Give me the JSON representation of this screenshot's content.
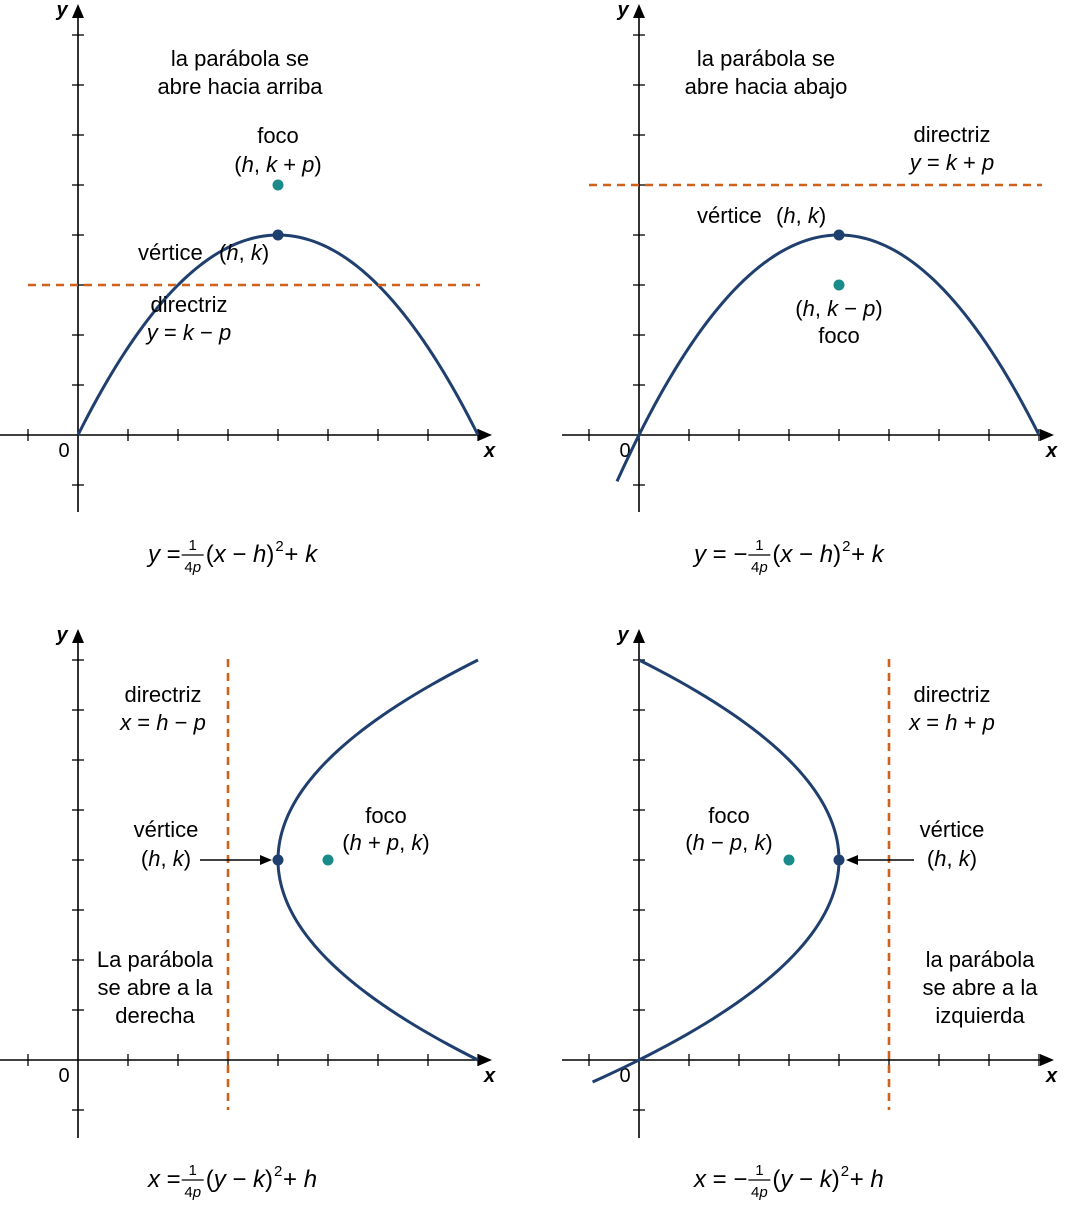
{
  "colors": {
    "curve": "#1f3f6e",
    "focus": "#1a8a8a",
    "directrix": "#d0611d",
    "text": "#000000"
  },
  "panels": {
    "up": {
      "axis_x": "x",
      "axis_y": "y",
      "origin": "0",
      "opening": [
        "la parábola se",
        "abre hacia arriba"
      ],
      "focus_label": "foco",
      "focus_coords": [
        "(",
        "h",
        ", ",
        "k",
        " + ",
        "p",
        ")"
      ],
      "vertex_label": "vértice",
      "vertex_coords": [
        "(",
        "h",
        ", ",
        "k",
        ")"
      ],
      "directrix_label": "directriz",
      "directrix_eq": [
        "y",
        " = ",
        "k",
        " − ",
        "p"
      ],
      "equation": {
        "lhs": "y",
        "eq": " = ",
        "num": "1",
        "den": "4p",
        "body": [
          "(",
          "x",
          " − ",
          "h",
          ")"
        ],
        "exp": "2",
        "tail": [
          " + ",
          "k"
        ]
      }
    },
    "down": {
      "axis_x": "x",
      "axis_y": "y",
      "origin": "0",
      "opening": [
        "la parábola se",
        "abre hacia abajo"
      ],
      "focus_label": "foco",
      "focus_coords": [
        "(",
        "h",
        ", ",
        "k",
        " − ",
        "p",
        ")"
      ],
      "vertex_label": "vértice",
      "vertex_coords": [
        "(",
        "h",
        ", ",
        "k",
        ")"
      ],
      "directrix_label": "directriz",
      "directrix_eq": [
        "y",
        " = ",
        "k",
        " + ",
        "p"
      ],
      "equation": {
        "lhs": "y",
        "eq": " = − ",
        "num": "1",
        "den": "4p",
        "body": [
          "(",
          "x",
          " − ",
          "h",
          ")"
        ],
        "exp": "2",
        "tail": [
          " + ",
          "k"
        ]
      }
    },
    "right": {
      "axis_x": "x",
      "axis_y": "y",
      "origin": "0",
      "opening": [
        "La parábola",
        "se abre a la",
        "derecha"
      ],
      "focus_label": "foco",
      "focus_coords": [
        "(",
        "h",
        " + ",
        "p",
        ", ",
        "k",
        ")"
      ],
      "vertex_label": "vértice",
      "vertex_coords": [
        "(",
        "h",
        ", ",
        "k",
        ")"
      ],
      "directrix_label": "directriz",
      "directrix_eq": [
        "x",
        " = ",
        "h",
        " − ",
        "p"
      ],
      "equation": {
        "lhs": "x",
        "eq": " = ",
        "num": "1",
        "den": "4p",
        "body": [
          "(",
          "y",
          " − ",
          "k",
          ")"
        ],
        "exp": "2",
        "tail": [
          " + ",
          "h"
        ]
      }
    },
    "left": {
      "axis_x": "x",
      "axis_y": "y",
      "origin": "0",
      "opening": [
        "la parábola",
        "se abre a la",
        "izquierda"
      ],
      "focus_label": "foco",
      "focus_coords": [
        "(",
        "h",
        " − ",
        "p",
        ", ",
        "k",
        ")"
      ],
      "vertex_label": "vértice",
      "vertex_coords": [
        "(",
        "h",
        ", ",
        "k",
        ")"
      ],
      "directrix_label": "directriz",
      "directrix_eq": [
        "x",
        " = ",
        "h",
        " + ",
        "p"
      ],
      "equation": {
        "lhs": "x",
        "eq": " = − ",
        "num": "1",
        "den": "4p",
        "body": [
          "(",
          "y",
          " − ",
          "k",
          ")"
        ],
        "exp": "2",
        "tail": [
          " + ",
          "h"
        ]
      }
    }
  }
}
